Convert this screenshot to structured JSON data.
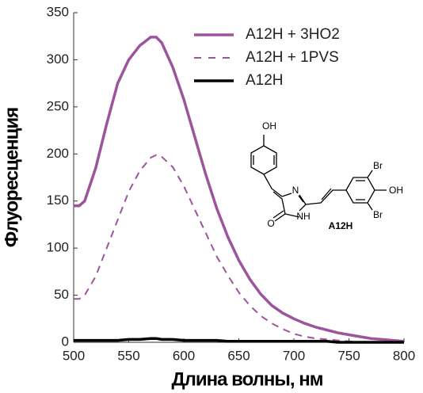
{
  "chart_data": {
    "type": "line",
    "x_label": "Длина волны, нм",
    "y_label": "Флуоресценция",
    "x": [
      500,
      505,
      510,
      520,
      530,
      540,
      550,
      560,
      570,
      575,
      580,
      590,
      600,
      610,
      620,
      630,
      640,
      650,
      660,
      670,
      680,
      690,
      700,
      710,
      720,
      730,
      740,
      750,
      760,
      770,
      780,
      790,
      800
    ],
    "series": [
      {
        "name": "A12H + 3HO2",
        "color": "#9c559d",
        "style": "solid",
        "values": [
          145,
          145,
          150,
          185,
          232,
          275,
          300,
          315,
          324,
          324,
          318,
          292,
          258,
          218,
          178,
          142,
          112,
          87,
          67,
          51,
          39,
          31,
          25,
          20,
          16,
          13,
          10,
          8,
          6,
          4,
          3,
          2,
          1
        ]
      },
      {
        "name": "A12H + 1PVS",
        "color": "#9c559d",
        "style": "dashed",
        "values": [
          46,
          46,
          50,
          70,
          100,
          130,
          160,
          182,
          196,
          199,
          197,
          186,
          166,
          141,
          116,
          91,
          71,
          53,
          39,
          28,
          20,
          14,
          9,
          6,
          4,
          3,
          2,
          1,
          0,
          0,
          0,
          0,
          0
        ]
      },
      {
        "name": "A12H",
        "color": "#000000",
        "style": "solid",
        "values": [
          2,
          2,
          2,
          2,
          2,
          2,
          3,
          3,
          4,
          4,
          3,
          3,
          2,
          2,
          2,
          2,
          1,
          1,
          1,
          1,
          1,
          1,
          1,
          1,
          1,
          1,
          0,
          0,
          0,
          0,
          0,
          0,
          0
        ]
      }
    ],
    "xlim": [
      500,
      800
    ],
    "xticks": [
      500,
      550,
      600,
      650,
      700,
      750,
      800
    ],
    "ylim": [
      0,
      350
    ],
    "yticks": [
      0,
      50,
      100,
      150,
      200,
      250,
      300,
      350
    ],
    "grid": false,
    "legend": "upper right",
    "structure_labels": [
      "OH",
      "N",
      "NH",
      "O",
      "Br",
      "OH",
      "Br",
      "A12H"
    ]
  }
}
